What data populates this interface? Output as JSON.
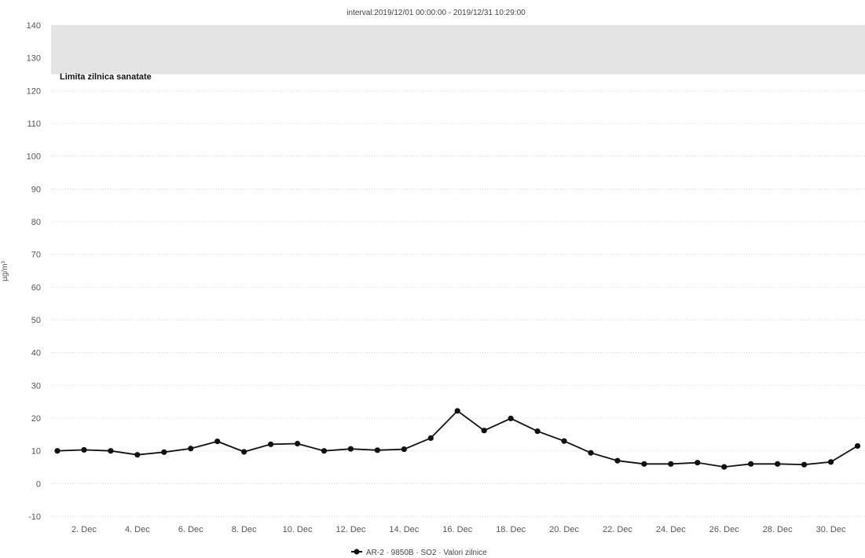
{
  "chart_data": {
    "type": "line",
    "title": "interval:2019/12/01 00:00:00 - 2019/12/31 10:29:00",
    "xlabel": "",
    "ylabel": "µg/m³",
    "ylim": [
      -10,
      140
    ],
    "yticks": [
      -10,
      0,
      10,
      20,
      30,
      40,
      50,
      60,
      70,
      80,
      90,
      100,
      110,
      120,
      130,
      140
    ],
    "xlim": [
      1,
      31
    ],
    "xtick_days": [
      2,
      4,
      6,
      8,
      10,
      12,
      14,
      16,
      18,
      20,
      22,
      24,
      26,
      28,
      30
    ],
    "xtick_labels": [
      "2. Dec",
      "4. Dec",
      "6. Dec",
      "8. Dec",
      "10. Dec",
      "12. Dec",
      "14. Dec",
      "16. Dec",
      "18. Dec",
      "20. Dec",
      "22. Dec",
      "24. Dec",
      "26. Dec",
      "28. Dec",
      "30. Dec"
    ],
    "grid": true,
    "legend_position": "bottom-center",
    "limit_band": {
      "label": "Limita zilnica sanatate",
      "from": 125,
      "to": 140
    },
    "series": [
      {
        "name": "AR-2 · 9850B · SO2 · Valori zilnice",
        "color": "#111111",
        "x": [
          1,
          2,
          3,
          4,
          5,
          6,
          7,
          8,
          9,
          10,
          11,
          12,
          13,
          14,
          15,
          16,
          17,
          18,
          19,
          20,
          21,
          22,
          23,
          24,
          25,
          26,
          27,
          28,
          29,
          30,
          31
        ],
        "values": [
          10,
          10.3,
          10,
          8.8,
          9.6,
          10.7,
          12.9,
          9.7,
          12,
          12.2,
          10,
          10.6,
          10.2,
          10.5,
          13.9,
          22.2,
          16.2,
          19.9,
          16,
          13,
          9.4,
          7,
          6,
          6,
          6.4,
          5.1,
          6,
          6,
          5.8,
          6.6,
          11.5
        ]
      }
    ]
  }
}
